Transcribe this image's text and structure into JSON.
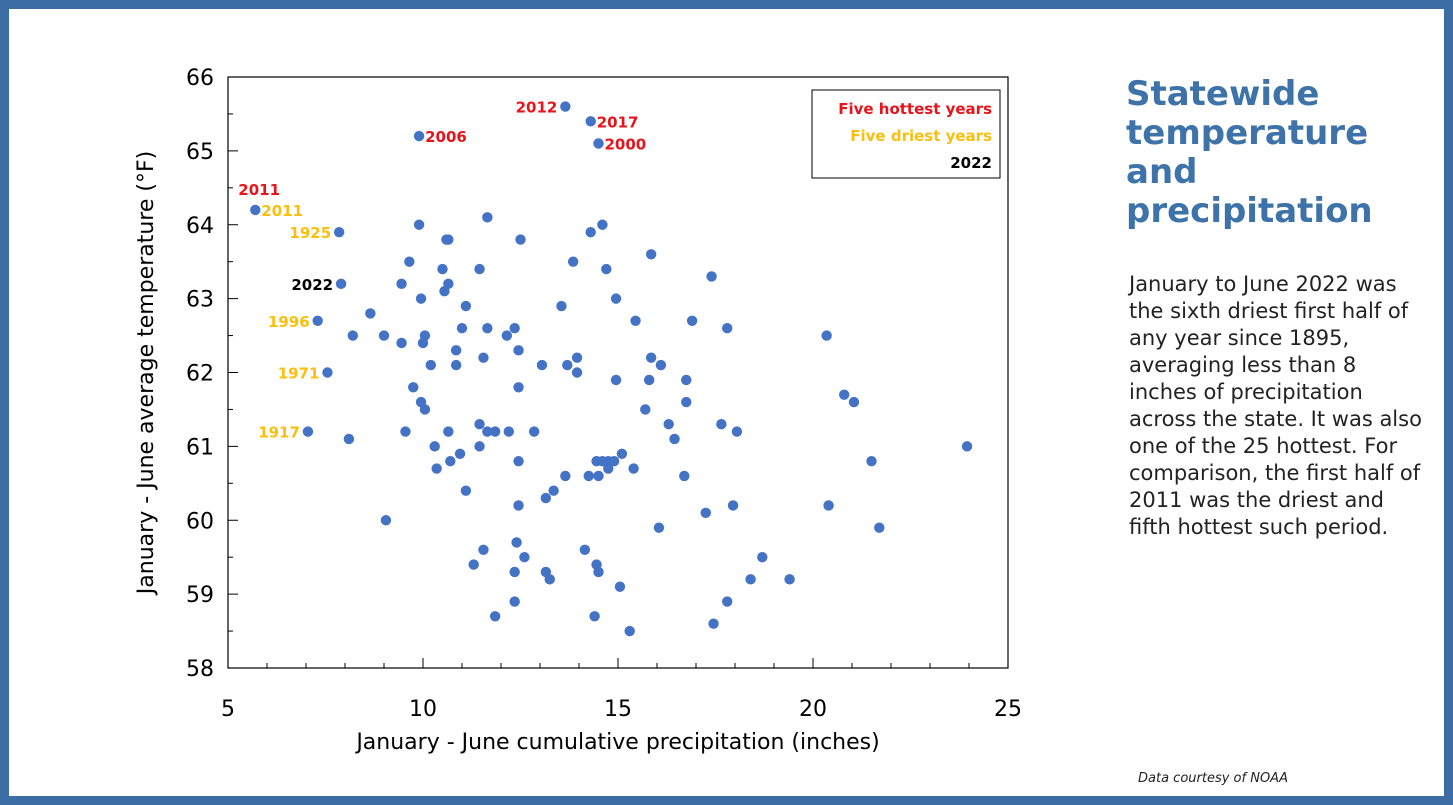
{
  "sidebar": {
    "title": "Statewide temperature and precipitation",
    "body": "January to June 2022 was the sixth driest first half of any year since 1895, averaging less than 8 inches of precipitation across the state. It was also one of the 25 hottest. For comparison, the first half of 2011 was the driest and fifth hottest such period.",
    "credit": "Data courtesy of NOAA"
  },
  "colors": {
    "frame": "#3c6ea5",
    "point": "#4472c4",
    "hottest": "#e8141b",
    "driest": "#fbbf0e",
    "current": "#000000",
    "title": "#3d73a9"
  },
  "chart_data": {
    "type": "scatter",
    "title": "",
    "xlabel": "January  - June cumulative precipitation (inches)",
    "ylabel": "January - June average temperature (°F)",
    "xlim": [
      5,
      25
    ],
    "ylim": [
      58,
      66
    ],
    "xticks": [
      5,
      10,
      15,
      20,
      25
    ],
    "yticks": [
      58,
      59,
      60,
      61,
      62,
      63,
      64,
      65,
      66
    ],
    "legend": {
      "placement": "top-right",
      "entries": [
        {
          "label": "Five hottest years",
          "color": "#e8141b"
        },
        {
          "label": "Five driest years",
          "color": "#fbbf0e"
        },
        {
          "label": "2022",
          "color": "#000000"
        }
      ]
    },
    "annotations": [
      {
        "text": "2012",
        "x": 13.65,
        "y": 65.6,
        "color": "#e8141b",
        "side": "left"
      },
      {
        "text": "2017",
        "x": 14.3,
        "y": 65.4,
        "color": "#e8141b",
        "side": "right"
      },
      {
        "text": "2006",
        "x": 9.9,
        "y": 65.2,
        "color": "#e8141b",
        "side": "right"
      },
      {
        "text": "2000",
        "x": 14.5,
        "y": 65.1,
        "color": "#e8141b",
        "side": "right"
      },
      {
        "text": "2011",
        "x": 5.7,
        "y": 64.2,
        "color": "#e8141b",
        "side": "above"
      },
      {
        "text": "2011",
        "x": 5.7,
        "y": 64.2,
        "color": "#fbbf0e",
        "side": "right"
      },
      {
        "text": "1925",
        "x": 7.85,
        "y": 63.9,
        "color": "#fbbf0e",
        "side": "left"
      },
      {
        "text": "2022",
        "x": 7.9,
        "y": 63.2,
        "color": "#000000",
        "side": "left"
      },
      {
        "text": "1996",
        "x": 7.3,
        "y": 62.7,
        "color": "#fbbf0e",
        "side": "left"
      },
      {
        "text": "1971",
        "x": 7.55,
        "y": 62.0,
        "color": "#fbbf0e",
        "side": "left"
      },
      {
        "text": "1917",
        "x": 7.05,
        "y": 61.2,
        "color": "#fbbf0e",
        "side": "left"
      }
    ],
    "series": [
      {
        "points": [
          [
            13.65,
            65.6
          ],
          [
            14.3,
            65.4
          ],
          [
            9.9,
            65.2
          ],
          [
            14.5,
            65.1
          ],
          [
            5.7,
            64.2
          ],
          [
            7.85,
            63.9
          ],
          [
            7.9,
            63.2
          ],
          [
            7.3,
            62.7
          ],
          [
            7.55,
            62.0
          ],
          [
            7.05,
            61.2
          ],
          [
            9.9,
            64.0
          ],
          [
            11.65,
            64.1
          ],
          [
            14.6,
            64.0
          ],
          [
            14.3,
            63.9
          ],
          [
            10.6,
            63.8
          ],
          [
            10.65,
            63.8
          ],
          [
            12.5,
            63.8
          ],
          [
            15.85,
            63.6
          ],
          [
            9.65,
            63.5
          ],
          [
            13.85,
            63.5
          ],
          [
            10.5,
            63.4
          ],
          [
            11.45,
            63.4
          ],
          [
            14.7,
            63.4
          ],
          [
            17.4,
            63.3
          ],
          [
            9.45,
            63.2
          ],
          [
            10.65,
            63.2
          ],
          [
            10.55,
            63.1
          ],
          [
            9.95,
            63.0
          ],
          [
            14.95,
            63.0
          ],
          [
            11.1,
            62.9
          ],
          [
            13.55,
            62.9
          ],
          [
            8.65,
            62.8
          ],
          [
            15.45,
            62.7
          ],
          [
            16.9,
            62.7
          ],
          [
            11.0,
            62.6
          ],
          [
            11.65,
            62.6
          ],
          [
            12.35,
            62.6
          ],
          [
            17.8,
            62.6
          ],
          [
            8.2,
            62.5
          ],
          [
            9.0,
            62.5
          ],
          [
            10.05,
            62.5
          ],
          [
            12.15,
            62.5
          ],
          [
            20.35,
            62.5
          ],
          [
            9.45,
            62.4
          ],
          [
            10.0,
            62.4
          ],
          [
            10.85,
            62.3
          ],
          [
            12.45,
            62.3
          ],
          [
            11.55,
            62.2
          ],
          [
            13.95,
            62.2
          ],
          [
            15.85,
            62.2
          ],
          [
            10.2,
            62.1
          ],
          [
            10.85,
            62.1
          ],
          [
            13.05,
            62.1
          ],
          [
            13.7,
            62.1
          ],
          [
            16.1,
            62.1
          ],
          [
            13.95,
            62.0
          ],
          [
            14.95,
            61.9
          ],
          [
            15.8,
            61.9
          ],
          [
            16.75,
            61.9
          ],
          [
            9.75,
            61.8
          ],
          [
            12.45,
            61.8
          ],
          [
            20.8,
            61.7
          ],
          [
            9.95,
            61.6
          ],
          [
            16.75,
            61.6
          ],
          [
            21.05,
            61.6
          ],
          [
            10.05,
            61.5
          ],
          [
            15.7,
            61.5
          ],
          [
            11.45,
            61.3
          ],
          [
            16.3,
            61.3
          ],
          [
            17.65,
            61.3
          ],
          [
            9.55,
            61.2
          ],
          [
            10.65,
            61.2
          ],
          [
            11.65,
            61.2
          ],
          [
            11.85,
            61.2
          ],
          [
            12.2,
            61.2
          ],
          [
            12.85,
            61.2
          ],
          [
            18.05,
            61.2
          ],
          [
            8.1,
            61.1
          ],
          [
            16.45,
            61.1
          ],
          [
            10.3,
            61.0
          ],
          [
            11.45,
            61.0
          ],
          [
            23.95,
            61.0
          ],
          [
            10.95,
            60.9
          ],
          [
            15.1,
            60.9
          ],
          [
            10.7,
            60.8
          ],
          [
            12.45,
            60.8
          ],
          [
            14.45,
            60.8
          ],
          [
            14.6,
            60.8
          ],
          [
            14.75,
            60.8
          ],
          [
            14.9,
            60.8
          ],
          [
            21.5,
            60.8
          ],
          [
            10.35,
            60.7
          ],
          [
            14.75,
            60.7
          ],
          [
            15.4,
            60.7
          ],
          [
            13.65,
            60.6
          ],
          [
            14.25,
            60.6
          ],
          [
            14.5,
            60.6
          ],
          [
            16.7,
            60.6
          ],
          [
            11.1,
            60.4
          ],
          [
            13.35,
            60.4
          ],
          [
            13.15,
            60.3
          ],
          [
            12.45,
            60.2
          ],
          [
            17.95,
            60.2
          ],
          [
            20.4,
            60.2
          ],
          [
            17.25,
            60.1
          ],
          [
            9.05,
            60.0
          ],
          [
            16.05,
            59.9
          ],
          [
            21.7,
            59.9
          ],
          [
            12.4,
            59.7
          ],
          [
            11.55,
            59.6
          ],
          [
            14.15,
            59.6
          ],
          [
            12.6,
            59.5
          ],
          [
            18.7,
            59.5
          ],
          [
            11.3,
            59.4
          ],
          [
            14.45,
            59.4
          ],
          [
            12.35,
            59.3
          ],
          [
            13.15,
            59.3
          ],
          [
            14.5,
            59.3
          ],
          [
            13.25,
            59.2
          ],
          [
            18.4,
            59.2
          ],
          [
            19.4,
            59.2
          ],
          [
            15.05,
            59.1
          ],
          [
            12.35,
            58.9
          ],
          [
            17.8,
            58.9
          ],
          [
            11.85,
            58.7
          ],
          [
            14.4,
            58.7
          ],
          [
            17.45,
            58.6
          ],
          [
            15.3,
            58.5
          ]
        ]
      }
    ]
  }
}
